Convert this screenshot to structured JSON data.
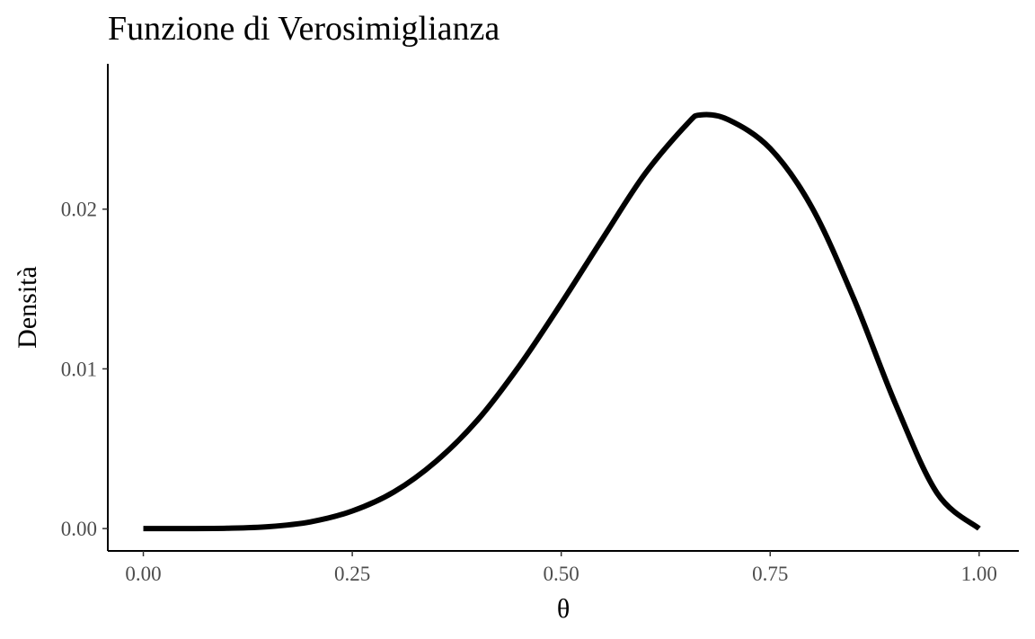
{
  "chart_data": {
    "type": "line",
    "title": "Funzione di Verosimiglianza",
    "xlabel": "θ",
    "ylabel": "Densità",
    "xlim": [
      -0.0425,
      1.0475
    ],
    "ylim": [
      -0.0014,
      0.0291
    ],
    "x_ticks": [
      0.0,
      0.25,
      0.5,
      0.75,
      1.0
    ],
    "x_tick_labels": [
      "0.00",
      "0.25",
      "0.50",
      "0.75",
      "1.00"
    ],
    "y_ticks": [
      0.0,
      0.01,
      0.02
    ],
    "y_tick_labels": [
      "0.00",
      "0.01",
      "0.02"
    ],
    "grid": false,
    "legend": "none",
    "color": "#000000",
    "series": [
      {
        "x": [
          0.0,
          0.05,
          0.1,
          0.15,
          0.2,
          0.25,
          0.3,
          0.35,
          0.4,
          0.45,
          0.5,
          0.55,
          0.6,
          0.65,
          0.667,
          0.7,
          0.75,
          0.8,
          0.85,
          0.9,
          0.95,
          1.0
        ],
        "y": [
          0.0,
          7e-07,
          2e-05,
          0.00012,
          0.00042,
          0.0011,
          0.0023,
          0.0042,
          0.0068,
          0.0102,
          0.0141,
          0.0182,
          0.0222,
          0.0253,
          0.0259,
          0.0256,
          0.0238,
          0.0201,
          0.0144,
          0.0078,
          0.0022,
          0.0
        ]
      }
    ]
  }
}
